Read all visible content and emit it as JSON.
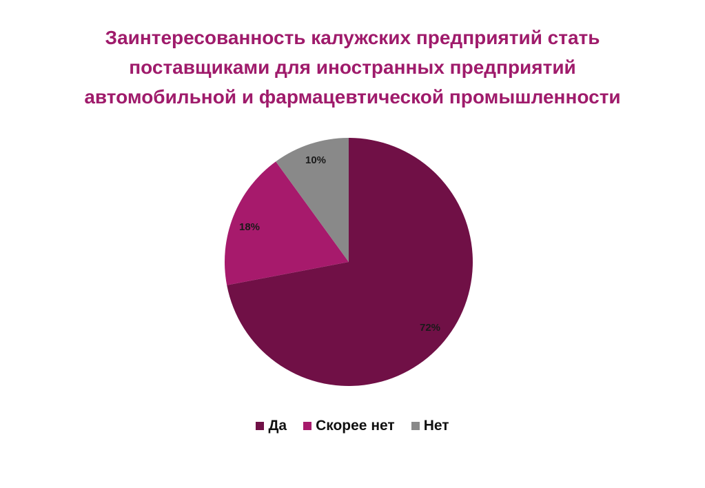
{
  "chart_data": {
    "type": "pie",
    "title_lines": [
      "Заинтересованность калужских предприятий стать",
      "поставщиками для иностранных предприятий",
      "автомобильной и фармацевтической промышленности"
    ],
    "categories": [
      "Да",
      "Скорее нет",
      "Нет"
    ],
    "values": [
      72,
      18,
      10
    ],
    "data_labels": [
      "72%",
      "18%",
      "10%"
    ],
    "colors": [
      "#701046",
      "#a71a6c",
      "#898989"
    ],
    "start_angle": "12 o'clock, clockwise",
    "legend_position": "bottom"
  }
}
